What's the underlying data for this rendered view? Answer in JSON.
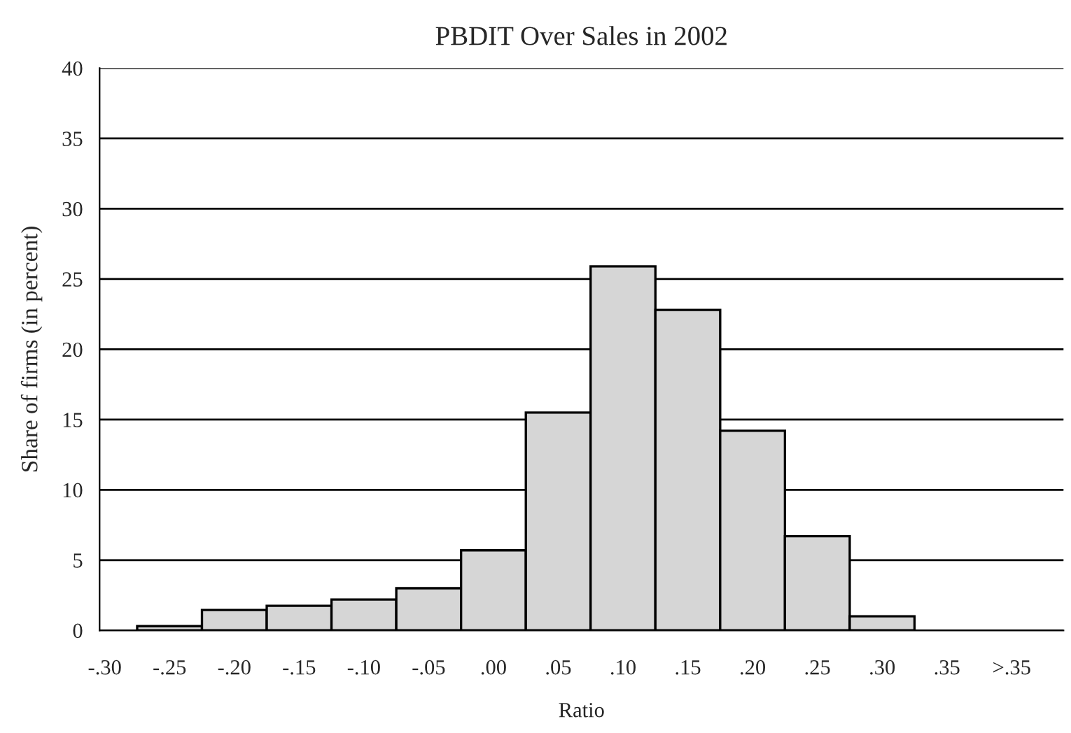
{
  "chart_data": {
    "type": "bar",
    "title": "PBDIT Over Sales in 2002",
    "xlabel": "Ratio",
    "ylabel": "Share of firms (in percent)",
    "categories": [
      "-.30",
      "-.25",
      "-.20",
      "-.15",
      "-.10",
      "-.05",
      ".00",
      ".05",
      ".10",
      ".15",
      ".20",
      ".25",
      ".30",
      ".35",
      ">.35"
    ],
    "values": [
      null,
      0.3,
      1.45,
      1.75,
      2.2,
      3.0,
      5.7,
      15.5,
      25.9,
      22.8,
      14.2,
      6.7,
      1.0,
      null,
      null
    ],
    "color": "#d6d6d6",
    "ylim": [
      0,
      40
    ],
    "yticks": [
      0,
      5,
      10,
      15,
      20,
      25,
      30,
      35,
      40
    ],
    "grid": "y",
    "legend": false
  }
}
